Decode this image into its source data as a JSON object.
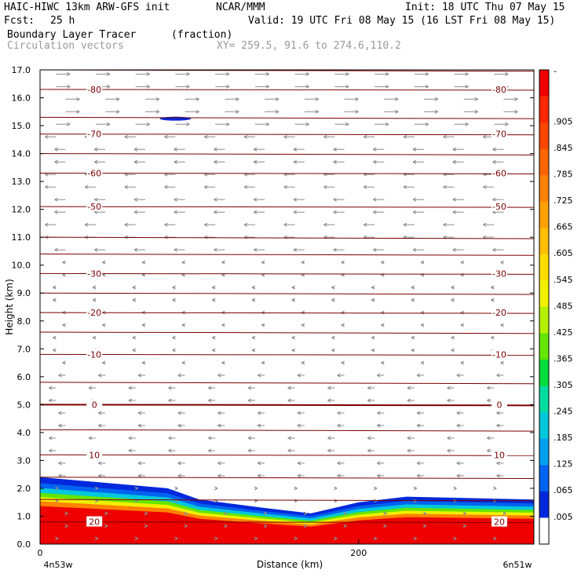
{
  "header": {
    "model": "HAIC-HIWC 13km ARW-GFS init",
    "org": "NCAR/MMM",
    "init": "Init: 18 UTC Thu 07 May 15",
    "fcst_label": "Fcst:",
    "fcst_value": "25 h",
    "valid": "Valid: 19 UTC Fri 08 May 15 (16 LST Fri 08 May 15)",
    "field": "Boundary Layer Tracer",
    "units": "(fraction)",
    "vectors": "Circulation vectors",
    "xy": "XY= 259.5, 91.6 to 274.6,110.2"
  },
  "colors": {
    "contour": "#7a0000",
    "vector": "#8c8c8c",
    "frame": "#000000"
  },
  "chart_data": {
    "type": "heatmap",
    "title": "Boundary Layer Tracer",
    "units": "(fraction)",
    "xlabel": "Distance (km)",
    "ylabel": "Height (km)",
    "xlim": [
      0,
      310
    ],
    "ylim": [
      0.0,
      17.0
    ],
    "x_ticks": [
      0,
      200
    ],
    "x_tick_labels": [
      "0",
      "200"
    ],
    "x_endpoints": [
      "4n53w",
      "6n51w"
    ],
    "y_ticks": [
      "0.0",
      "1.0",
      "2.0",
      "3.0",
      "4.0",
      "5.0",
      "6.0",
      "7.0",
      "8.0",
      "9.0",
      "10.0",
      "11.0",
      "12.0",
      "13.0",
      "14.0",
      "15.0",
      "16.0",
      "17.0"
    ],
    "colorbar": {
      "levels": [
        "-",
        ".905",
        ".845",
        ".785",
        ".725",
        ".665",
        ".605",
        ".545",
        ".485",
        ".425",
        ".365",
        ".305",
        ".245",
        ".185",
        ".125",
        ".065",
        ".005"
      ],
      "colors": [
        "#ee0000",
        "#ff2800",
        "#ff4600",
        "#ff6400",
        "#ff8200",
        "#ffa000",
        "#ffbe00",
        "#ffdc00",
        "#f0f000",
        "#b4f000",
        "#64e600",
        "#00dc3c",
        "#00dca0",
        "#00c8dc",
        "#00a0f0",
        "#0064f0",
        "#0028dc",
        "#ffffff"
      ]
    },
    "temperature_contours": [
      {
        "label": "-80",
        "height_km": 16.3
      },
      {
        "label": "-70",
        "height_km": 14.7
      },
      {
        "label": "-60",
        "height_km": 13.3
      },
      {
        "label": "-50",
        "height_km": 12.1
      },
      {
        "label": "-30",
        "height_km": 9.7
      },
      {
        "label": "-20",
        "height_km": 8.3
      },
      {
        "label": "-10",
        "height_km": 6.8
      },
      {
        "label": "0",
        "height_km": 5.0
      },
      {
        "label": "10",
        "height_km": 3.2
      },
      {
        "label": "20",
        "height_km": 0.8
      }
    ],
    "boundary_layer_top_km": [
      {
        "x": 0,
        "y": 2.4
      },
      {
        "x": 40,
        "y": 2.2
      },
      {
        "x": 80,
        "y": 2.0
      },
      {
        "x": 100,
        "y": 1.6
      },
      {
        "x": 140,
        "y": 1.3
      },
      {
        "x": 170,
        "y": 1.1
      },
      {
        "x": 200,
        "y": 1.5
      },
      {
        "x": 230,
        "y": 1.7
      },
      {
        "x": 310,
        "y": 1.6
      }
    ]
  }
}
